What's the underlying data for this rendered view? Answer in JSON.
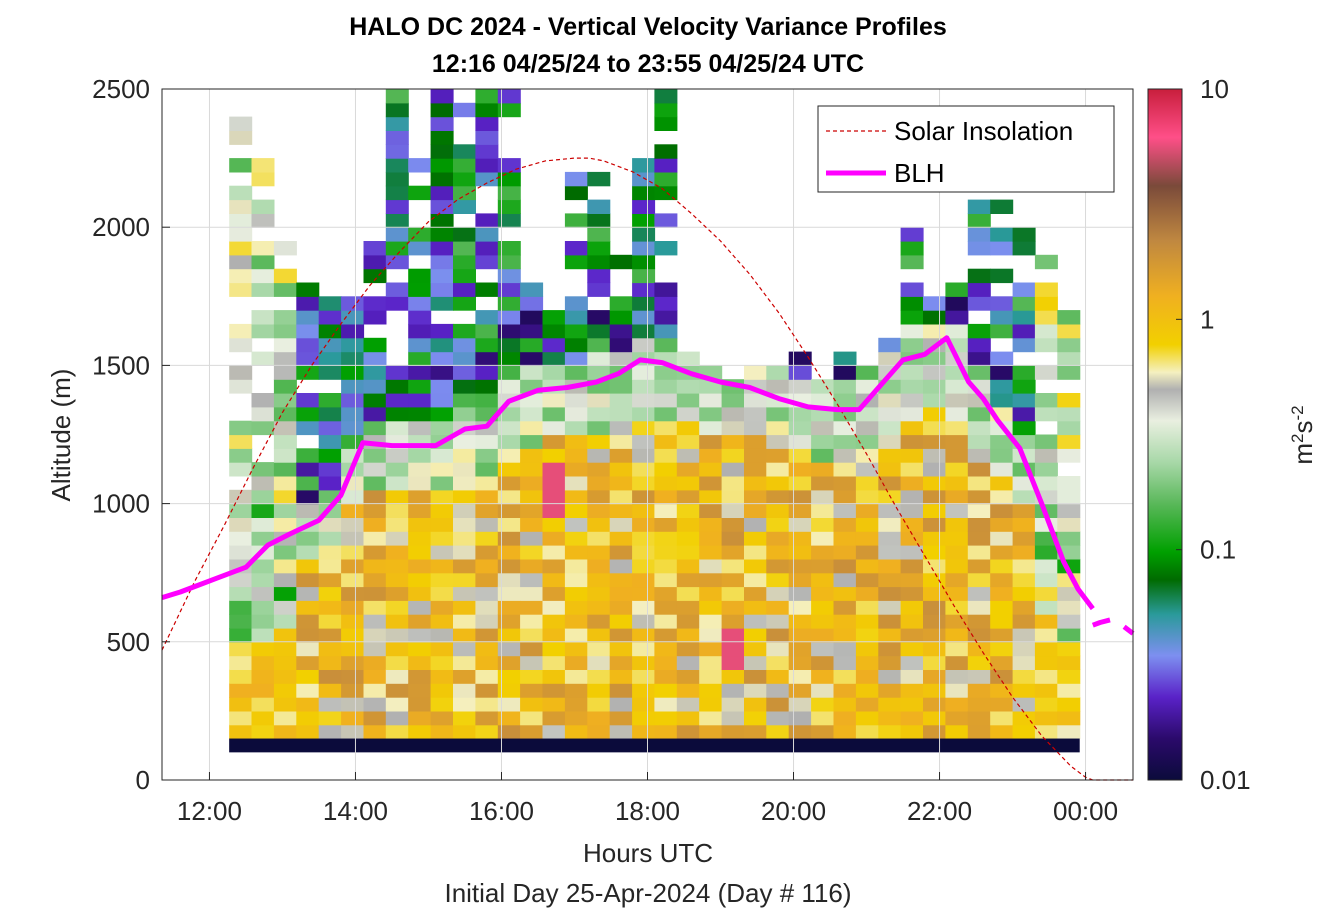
{
  "chart_data": {
    "type": "heatmap",
    "title": "HALO DC 2024 - Vertical Velocity Variance Profiles",
    "subtitle": "12:16 04/25/24 to 23:55 04/25/24  UTC",
    "xlabel": "Hours UTC",
    "xlabel2": "Initial Day 25-Apr-2024 (Day # 116)",
    "ylabel": "Altitude (m)",
    "xlim": [
      11.35,
      24.65
    ],
    "ylim": [
      0,
      2500
    ],
    "x_ticks": [
      12,
      14,
      16,
      18,
      20,
      22,
      24
    ],
    "x_tick_labels": [
      "12:00",
      "14:00",
      "16:00",
      "18:00",
      "20:00",
      "22:00",
      "00:00"
    ],
    "y_ticks": [
      0,
      500,
      1000,
      1500,
      2000,
      2500
    ],
    "y_tick_labels": [
      "0",
      "500",
      "1000",
      "1500",
      "2000",
      "2500"
    ],
    "grid": true,
    "legend_position": "top-right",
    "colorbar": {
      "label": "m²s⁻²",
      "scale": "log",
      "range": [
        0.01,
        10
      ],
      "tick_values": [
        0.01,
        0.1,
        1,
        10
      ],
      "tick_labels": [
        "0.01",
        "0.1",
        "1",
        "10"
      ]
    },
    "heatmap_time_range_hours": [
      12.27,
      23.92
    ],
    "heatmap_columns": 38,
    "heatmap_altitude_bin_m": 50,
    "heatmap_ground_value": 0.01,
    "series": [
      {
        "name": "Solar Insolation",
        "style": "dashed",
        "color": "#cc0000",
        "x": [
          11.35,
          11.8,
          12.2,
          12.6,
          13.0,
          13.4,
          13.8,
          14.2,
          14.6,
          15.0,
          15.4,
          15.8,
          16.2,
          16.6,
          17.0,
          17.2,
          17.4,
          17.8,
          18.2,
          18.6,
          19.0,
          19.4,
          19.8,
          20.2,
          20.6,
          21.0,
          21.4,
          21.8,
          22.2,
          22.6,
          23.0,
          23.4,
          23.8,
          24.0,
          24.1,
          24.2,
          24.65
        ],
        "y": [
          470,
          720,
          920,
          1130,
          1330,
          1500,
          1650,
          1790,
          1910,
          2020,
          2100,
          2160,
          2210,
          2240,
          2250,
          2250,
          2240,
          2200,
          2140,
          2050,
          1950,
          1830,
          1690,
          1530,
          1360,
          1180,
          990,
          810,
          630,
          460,
          300,
          160,
          50,
          10,
          0,
          0,
          0
        ]
      },
      {
        "name": "BLH",
        "style": "solid",
        "color": "#ff00ff",
        "x": [
          11.35,
          11.6,
          11.8,
          12.1,
          12.5,
          12.8,
          13.1,
          13.5,
          13.8,
          14.1,
          14.5,
          14.8,
          15.1,
          15.5,
          15.8,
          16.1,
          16.5,
          16.9,
          17.3,
          17.6,
          17.9,
          18.2,
          18.6,
          19.0,
          19.4,
          19.8,
          20.2,
          20.6,
          20.9,
          21.2,
          21.5,
          21.8,
          22.1,
          22.4,
          22.6,
          22.8,
          23.1,
          23.4,
          23.7,
          23.9,
          24.1
        ],
        "y": [
          660,
          680,
          700,
          730,
          770,
          850,
          890,
          940,
          1030,
          1220,
          1210,
          1210,
          1210,
          1270,
          1280,
          1370,
          1410,
          1420,
          1440,
          1470,
          1520,
          1510,
          1470,
          1440,
          1420,
          1380,
          1350,
          1340,
          1340,
          1430,
          1520,
          1540,
          1600,
          1440,
          1380,
          1300,
          1200,
          1000,
          790,
          690,
          620
        ]
      },
      {
        "name": "BLH_tail",
        "style": "dashed",
        "color": "#ff00ff",
        "x": [
          24.1,
          24.2,
          24.35,
          24.5,
          24.65
        ],
        "y": [
          560,
          570,
          580,
          560,
          530
        ]
      }
    ]
  }
}
